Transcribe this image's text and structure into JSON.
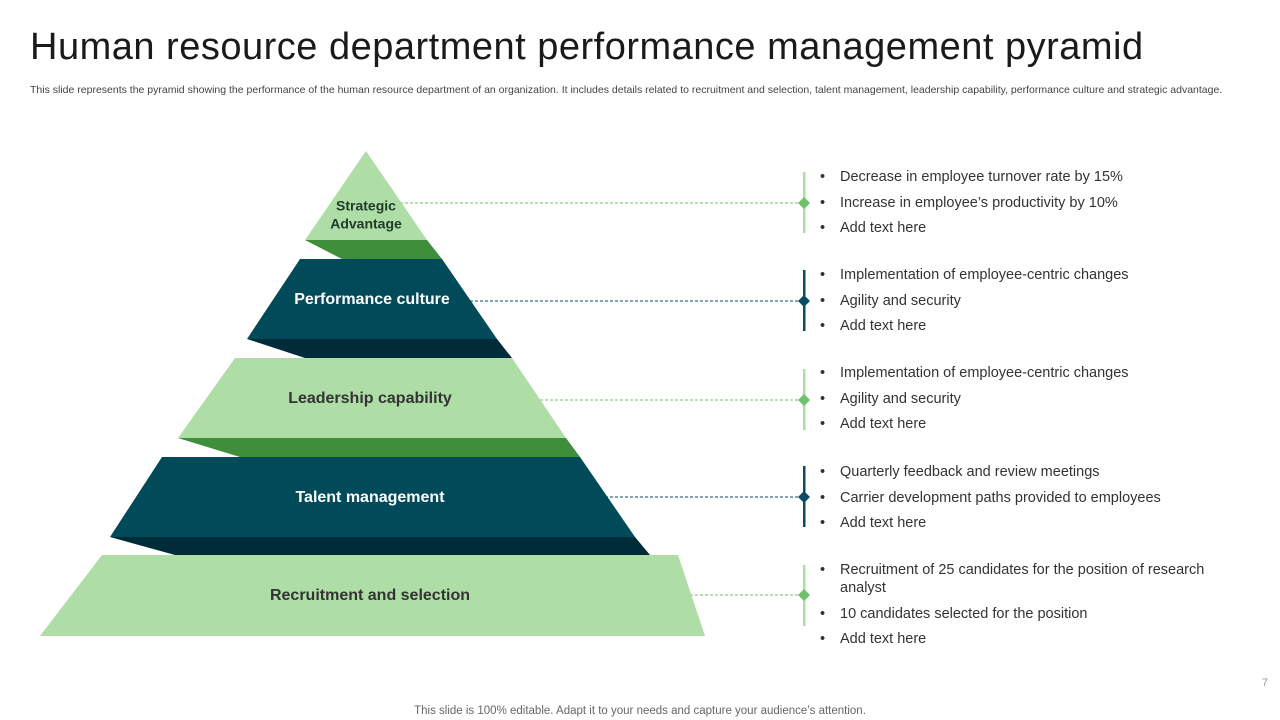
{
  "title": "Human resource department performance management pyramid",
  "subtitle": "This slide represents the pyramid showing the performance of the human resource department of an organization. It includes details related to recruitment and selection, talent management, leadership capability, performance culture and strategic advantage.",
  "colors": {
    "light_green": "#aedea6",
    "mid_green": "#3e8e3a",
    "dark_teal": "#004a5a",
    "dark_navy": "#002c3a",
    "accent_green": "#6cc36a",
    "accent_teal": "#0a4a62"
  },
  "pyramid": {
    "levels": [
      {
        "label_lines": [
          "Strategic",
          "Advantage"
        ],
        "bullets": [
          "Decrease in employee turnover rate by 15%",
          "Increase in employee’s productivity by 10%",
          "Add text here"
        ]
      },
      {
        "label_lines": [
          "Performance culture"
        ],
        "bullets": [
          "Implementation of employee-centric changes",
          "Agility and security",
          "Add text here"
        ]
      },
      {
        "label_lines": [
          "Leadership capability"
        ],
        "bullets": [
          "Implementation of employee-centric changes",
          "Agility and security",
          "Add text here"
        ]
      },
      {
        "label_lines": [
          "Talent management"
        ],
        "bullets": [
          "Quarterly feedback and review meetings",
          "Carrier development paths provided to employees",
          "Add text here"
        ]
      },
      {
        "label_lines": [
          "Recruitment and selection"
        ],
        "bullets": [
          "Recruitment of 25 candidates for the position of research analyst",
          "10 candidates selected for the position",
          "Add text here"
        ]
      }
    ]
  },
  "footer": "This slide is 100% editable. Adapt it to your needs and capture your audience’s attention.",
  "page_number": "7"
}
